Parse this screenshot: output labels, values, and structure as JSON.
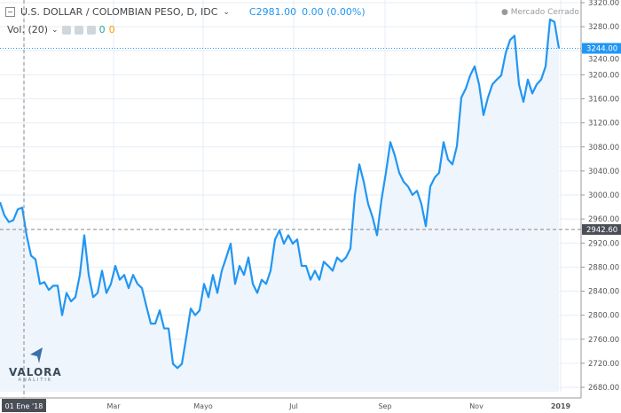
{
  "header": {
    "symbol": "U.S. DOLLAR / COLOMBIAN PESO, D, IDC",
    "close_label": "C",
    "close_value": "2981.00",
    "change": "0.00 (0.00%)",
    "volume_label": "Vol. (20)",
    "vol_value_1": "0",
    "vol_value_2": "0",
    "market_status": "Mercado Cerrado"
  },
  "logo": {
    "name": "VALORA",
    "sub": "ANALITIK"
  },
  "colors": {
    "line": "#2196f3",
    "fill": "#eef5fc",
    "last_price_bg": "#2196f3",
    "crosshair_bg": "#4a4f57"
  },
  "chart_data": {
    "type": "area",
    "title": "U.S. DOLLAR / COLOMBIAN PESO, D, IDC",
    "xlabel": "",
    "ylabel": "",
    "ylim": [
      2680,
      3320
    ],
    "yticks": [
      "3320.00",
      "3280.00",
      "3240.00",
      "3200.00",
      "3160.00",
      "3120.00",
      "3080.00",
      "3040.00",
      "3000.00",
      "2960.00",
      "2920.00",
      "2880.00",
      "2840.00",
      "2800.00",
      "2760.00",
      "2720.00",
      "2680.00"
    ],
    "xticks": [
      {
        "label": "01 Ene '18",
        "index": 5.4
      },
      {
        "label": "Mar",
        "index": 25.6
      },
      {
        "label": "Mayo",
        "index": 45.8
      },
      {
        "label": "Jul",
        "index": 66.2
      },
      {
        "label": "Sep",
        "index": 86.8
      },
      {
        "label": "Nov",
        "index": 107.4
      },
      {
        "label": "2019",
        "index": 126.4
      }
    ],
    "last_price": "3244.00",
    "crosshair_price": "2942.60",
    "crosshair_date": "01 Ene '18",
    "grid": true,
    "values": [
      2988,
      2966,
      2955,
      2958,
      2976,
      2979,
      2933,
      2899,
      2893,
      2852,
      2855,
      2842,
      2849,
      2849,
      2800,
      2837,
      2823,
      2830,
      2867,
      2933,
      2867,
      2830,
      2837,
      2874,
      2837,
      2852,
      2882,
      2859,
      2867,
      2845,
      2867,
      2852,
      2845,
      2815,
      2786,
      2786,
      2808,
      2778,
      2778,
      2719,
      2712,
      2719,
      2764,
      2811,
      2800,
      2808,
      2852,
      2830,
      2867,
      2837,
      2874,
      2896,
      2919,
      2852,
      2882,
      2867,
      2896,
      2852,
      2837,
      2859,
      2852,
      2874,
      2926,
      2941,
      2919,
      2933,
      2919,
      2926,
      2882,
      2882,
      2859,
      2874,
      2859,
      2889,
      2882,
      2874,
      2896,
      2889,
      2896,
      2911,
      3000,
      3051,
      3022,
      2985,
      2963,
      2933,
      2992,
      3037,
      3088,
      3066,
      3037,
      3022,
      3014,
      3000,
      3007,
      2985,
      2948,
      3014,
      3029,
      3037,
      3088,
      3059,
      3051,
      3081,
      3162,
      3177,
      3199,
      3214,
      3184,
      3133,
      3162,
      3184,
      3192,
      3199,
      3236,
      3258,
      3265,
      3184,
      3155,
      3192,
      3169,
      3184,
      3192,
      3214,
      3292,
      3288,
      3244
    ]
  }
}
